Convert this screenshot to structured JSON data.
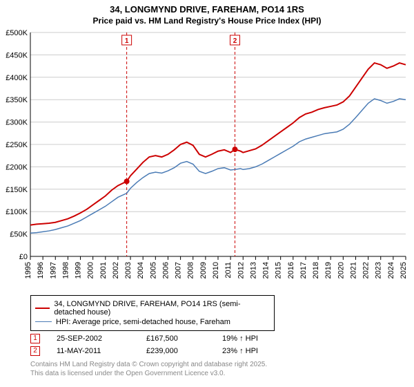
{
  "header": {
    "title": "34, LONGMYND DRIVE, FAREHAM, PO14 1RS",
    "subtitle": "Price paid vs. HM Land Registry's House Price Index (HPI)"
  },
  "chart": {
    "type": "line",
    "background_color": "#ffffff",
    "grid_color": "#cccccc",
    "axis_color": "#000000",
    "ylim": [
      0,
      500000
    ],
    "ytick_step": 50000,
    "ytick_labels": [
      "£0",
      "£50K",
      "£100K",
      "£150K",
      "£200K",
      "£250K",
      "£300K",
      "£350K",
      "£400K",
      "£450K",
      "£500K"
    ],
    "xlim": [
      1995,
      2025
    ],
    "xtick_labels": [
      "1995",
      "1996",
      "1997",
      "1998",
      "1999",
      "2000",
      "2001",
      "2002",
      "2003",
      "2004",
      "2005",
      "2006",
      "2007",
      "2008",
      "2009",
      "2010",
      "2011",
      "2012",
      "2013",
      "2014",
      "2015",
      "2016",
      "2017",
      "2018",
      "2019",
      "2020",
      "2021",
      "2022",
      "2023",
      "2024",
      "2025"
    ],
    "label_fontsize": 11,
    "series": [
      {
        "name": "price_paid",
        "color": "#cc0000",
        "line_width": 2,
        "data": [
          [
            1995,
            70000
          ],
          [
            1995.5,
            72000
          ],
          [
            1996,
            73000
          ],
          [
            1996.5,
            74000
          ],
          [
            1997,
            76000
          ],
          [
            1997.5,
            80000
          ],
          [
            1998,
            84000
          ],
          [
            1998.5,
            90000
          ],
          [
            1999,
            97000
          ],
          [
            1999.5,
            105000
          ],
          [
            2000,
            115000
          ],
          [
            2000.5,
            125000
          ],
          [
            2001,
            135000
          ],
          [
            2001.5,
            148000
          ],
          [
            2002,
            158000
          ],
          [
            2002.7,
            167500
          ],
          [
            2003,
            180000
          ],
          [
            2003.5,
            195000
          ],
          [
            2004,
            210000
          ],
          [
            2004.5,
            222000
          ],
          [
            2005,
            225000
          ],
          [
            2005.5,
            222000
          ],
          [
            2006,
            228000
          ],
          [
            2006.5,
            238000
          ],
          [
            2007,
            250000
          ],
          [
            2007.5,
            255000
          ],
          [
            2008,
            248000
          ],
          [
            2008.5,
            228000
          ],
          [
            2009,
            222000
          ],
          [
            2009.5,
            228000
          ],
          [
            2010,
            235000
          ],
          [
            2010.5,
            238000
          ],
          [
            2011,
            232000
          ],
          [
            2011.35,
            239000
          ],
          [
            2011.8,
            235000
          ],
          [
            2012,
            232000
          ],
          [
            2012.5,
            236000
          ],
          [
            2013,
            240000
          ],
          [
            2013.5,
            248000
          ],
          [
            2014,
            258000
          ],
          [
            2014.5,
            268000
          ],
          [
            2015,
            278000
          ],
          [
            2015.5,
            288000
          ],
          [
            2016,
            298000
          ],
          [
            2016.5,
            310000
          ],
          [
            2017,
            318000
          ],
          [
            2017.5,
            322000
          ],
          [
            2018,
            328000
          ],
          [
            2018.5,
            332000
          ],
          [
            2019,
            335000
          ],
          [
            2019.5,
            338000
          ],
          [
            2020,
            345000
          ],
          [
            2020.5,
            358000
          ],
          [
            2021,
            378000
          ],
          [
            2021.5,
            398000
          ],
          [
            2022,
            418000
          ],
          [
            2022.5,
            432000
          ],
          [
            2023,
            428000
          ],
          [
            2023.5,
            420000
          ],
          [
            2024,
            425000
          ],
          [
            2024.5,
            432000
          ],
          [
            2025,
            428000
          ]
        ],
        "sale_points": [
          {
            "x": 2002.7,
            "y": 167500
          },
          {
            "x": 2011.35,
            "y": 239000
          }
        ]
      },
      {
        "name": "hpi",
        "color": "#4a7bb5",
        "line_width": 1.5,
        "data": [
          [
            1995,
            52000
          ],
          [
            1995.5,
            53000
          ],
          [
            1996,
            55000
          ],
          [
            1996.5,
            57000
          ],
          [
            1997,
            60000
          ],
          [
            1997.5,
            64000
          ],
          [
            1998,
            68000
          ],
          [
            1998.5,
            74000
          ],
          [
            1999,
            80000
          ],
          [
            1999.5,
            88000
          ],
          [
            2000,
            96000
          ],
          [
            2000.5,
            104000
          ],
          [
            2001,
            112000
          ],
          [
            2001.5,
            122000
          ],
          [
            2002,
            132000
          ],
          [
            2002.7,
            141000
          ],
          [
            2003,
            152000
          ],
          [
            2003.5,
            165000
          ],
          [
            2004,
            176000
          ],
          [
            2004.5,
            185000
          ],
          [
            2005,
            188000
          ],
          [
            2005.5,
            186000
          ],
          [
            2006,
            191000
          ],
          [
            2006.5,
            198000
          ],
          [
            2007,
            208000
          ],
          [
            2007.5,
            212000
          ],
          [
            2008,
            206000
          ],
          [
            2008.5,
            190000
          ],
          [
            2009,
            185000
          ],
          [
            2009.5,
            190000
          ],
          [
            2010,
            196000
          ],
          [
            2010.5,
            198000
          ],
          [
            2011,
            193000
          ],
          [
            2011.35,
            194000
          ],
          [
            2011.8,
            196000
          ],
          [
            2012,
            194000
          ],
          [
            2012.5,
            196000
          ],
          [
            2013,
            200000
          ],
          [
            2013.5,
            206000
          ],
          [
            2014,
            214000
          ],
          [
            2014.5,
            222000
          ],
          [
            2015,
            230000
          ],
          [
            2015.5,
            238000
          ],
          [
            2016,
            246000
          ],
          [
            2016.5,
            256000
          ],
          [
            2017,
            262000
          ],
          [
            2017.5,
            266000
          ],
          [
            2018,
            270000
          ],
          [
            2018.5,
            274000
          ],
          [
            2019,
            276000
          ],
          [
            2019.5,
            278000
          ],
          [
            2020,
            284000
          ],
          [
            2020.5,
            295000
          ],
          [
            2021,
            310000
          ],
          [
            2021.5,
            326000
          ],
          [
            2022,
            342000
          ],
          [
            2022.5,
            352000
          ],
          [
            2023,
            348000
          ],
          [
            2023.5,
            342000
          ],
          [
            2024,
            346000
          ],
          [
            2024.5,
            352000
          ],
          [
            2025,
            350000
          ]
        ]
      }
    ],
    "markers": [
      {
        "label": "1",
        "x": 2002.7,
        "color": "#cc0000",
        "dash": "4,3"
      },
      {
        "label": "2",
        "x": 2011.35,
        "color": "#cc0000",
        "dash": "4,3"
      }
    ]
  },
  "legend": {
    "items": [
      {
        "color": "#cc0000",
        "width": 2,
        "label": "34, LONGMYND DRIVE, FAREHAM, PO14 1RS (semi-detached house)"
      },
      {
        "color": "#4a7bb5",
        "width": 1.5,
        "label": "HPI: Average price, semi-detached house, Fareham"
      }
    ]
  },
  "sales_table": {
    "rows": [
      {
        "marker": "1",
        "date": "25-SEP-2002",
        "price": "£167,500",
        "delta": "19% ↑ HPI"
      },
      {
        "marker": "2",
        "date": "11-MAY-2011",
        "price": "£239,000",
        "delta": "23% ↑ HPI"
      }
    ]
  },
  "footer": {
    "line1": "Contains HM Land Registry data © Crown copyright and database right 2025.",
    "line2": "This data is licensed under the Open Government Licence v3.0."
  }
}
